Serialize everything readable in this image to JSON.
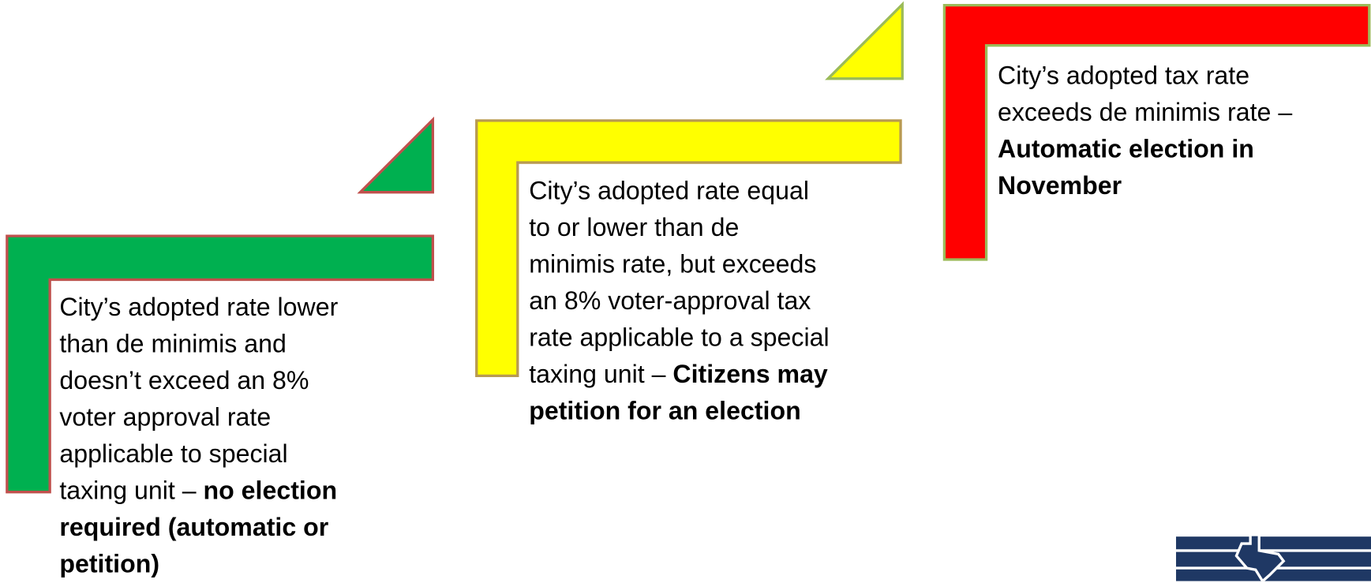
{
  "steps": [
    {
      "lines": [
        [
          {
            "text": "City’s adopted rate lower",
            "bold": false
          }
        ],
        [
          {
            "text": "than de minimis and",
            "bold": false
          }
        ],
        [
          {
            "text": "doesn’t exceed an 8%",
            "bold": false
          }
        ],
        [
          {
            "text": "voter approval rate",
            "bold": false
          }
        ],
        [
          {
            "text": "applicable to special",
            "bold": false
          }
        ],
        [
          {
            "text": "taxing unit – ",
            "bold": false
          },
          {
            "text": "no election",
            "bold": true
          }
        ],
        [
          {
            "text": "required (automatic or",
            "bold": true
          }
        ],
        [
          {
            "text": "petition)",
            "bold": true
          }
        ]
      ]
    },
    {
      "lines": [
        [
          {
            "text": "City’s adopted rate equal",
            "bold": false
          }
        ],
        [
          {
            "text": "to or lower than de",
            "bold": false
          }
        ],
        [
          {
            "text": "minimis rate, but exceeds",
            "bold": false
          }
        ],
        [
          {
            "text": "an 8% voter-approval tax",
            "bold": false
          }
        ],
        [
          {
            "text": "rate applicable to a special",
            "bold": false
          }
        ],
        [
          {
            "text": "taxing unit – ",
            "bold": false
          },
          {
            "text": "Citizens may",
            "bold": true
          }
        ],
        [
          {
            "text": "petition for an election",
            "bold": true
          }
        ]
      ]
    },
    {
      "lines": [
        [
          {
            "text": "City’s adopted tax rate",
            "bold": false
          }
        ],
        [
          {
            "text": "exceeds de minimis rate –",
            "bold": false
          }
        ],
        [
          {
            "text": "Automatic election in",
            "bold": true
          }
        ],
        [
          {
            "text": "November",
            "bold": true
          }
        ]
      ]
    }
  ]
}
